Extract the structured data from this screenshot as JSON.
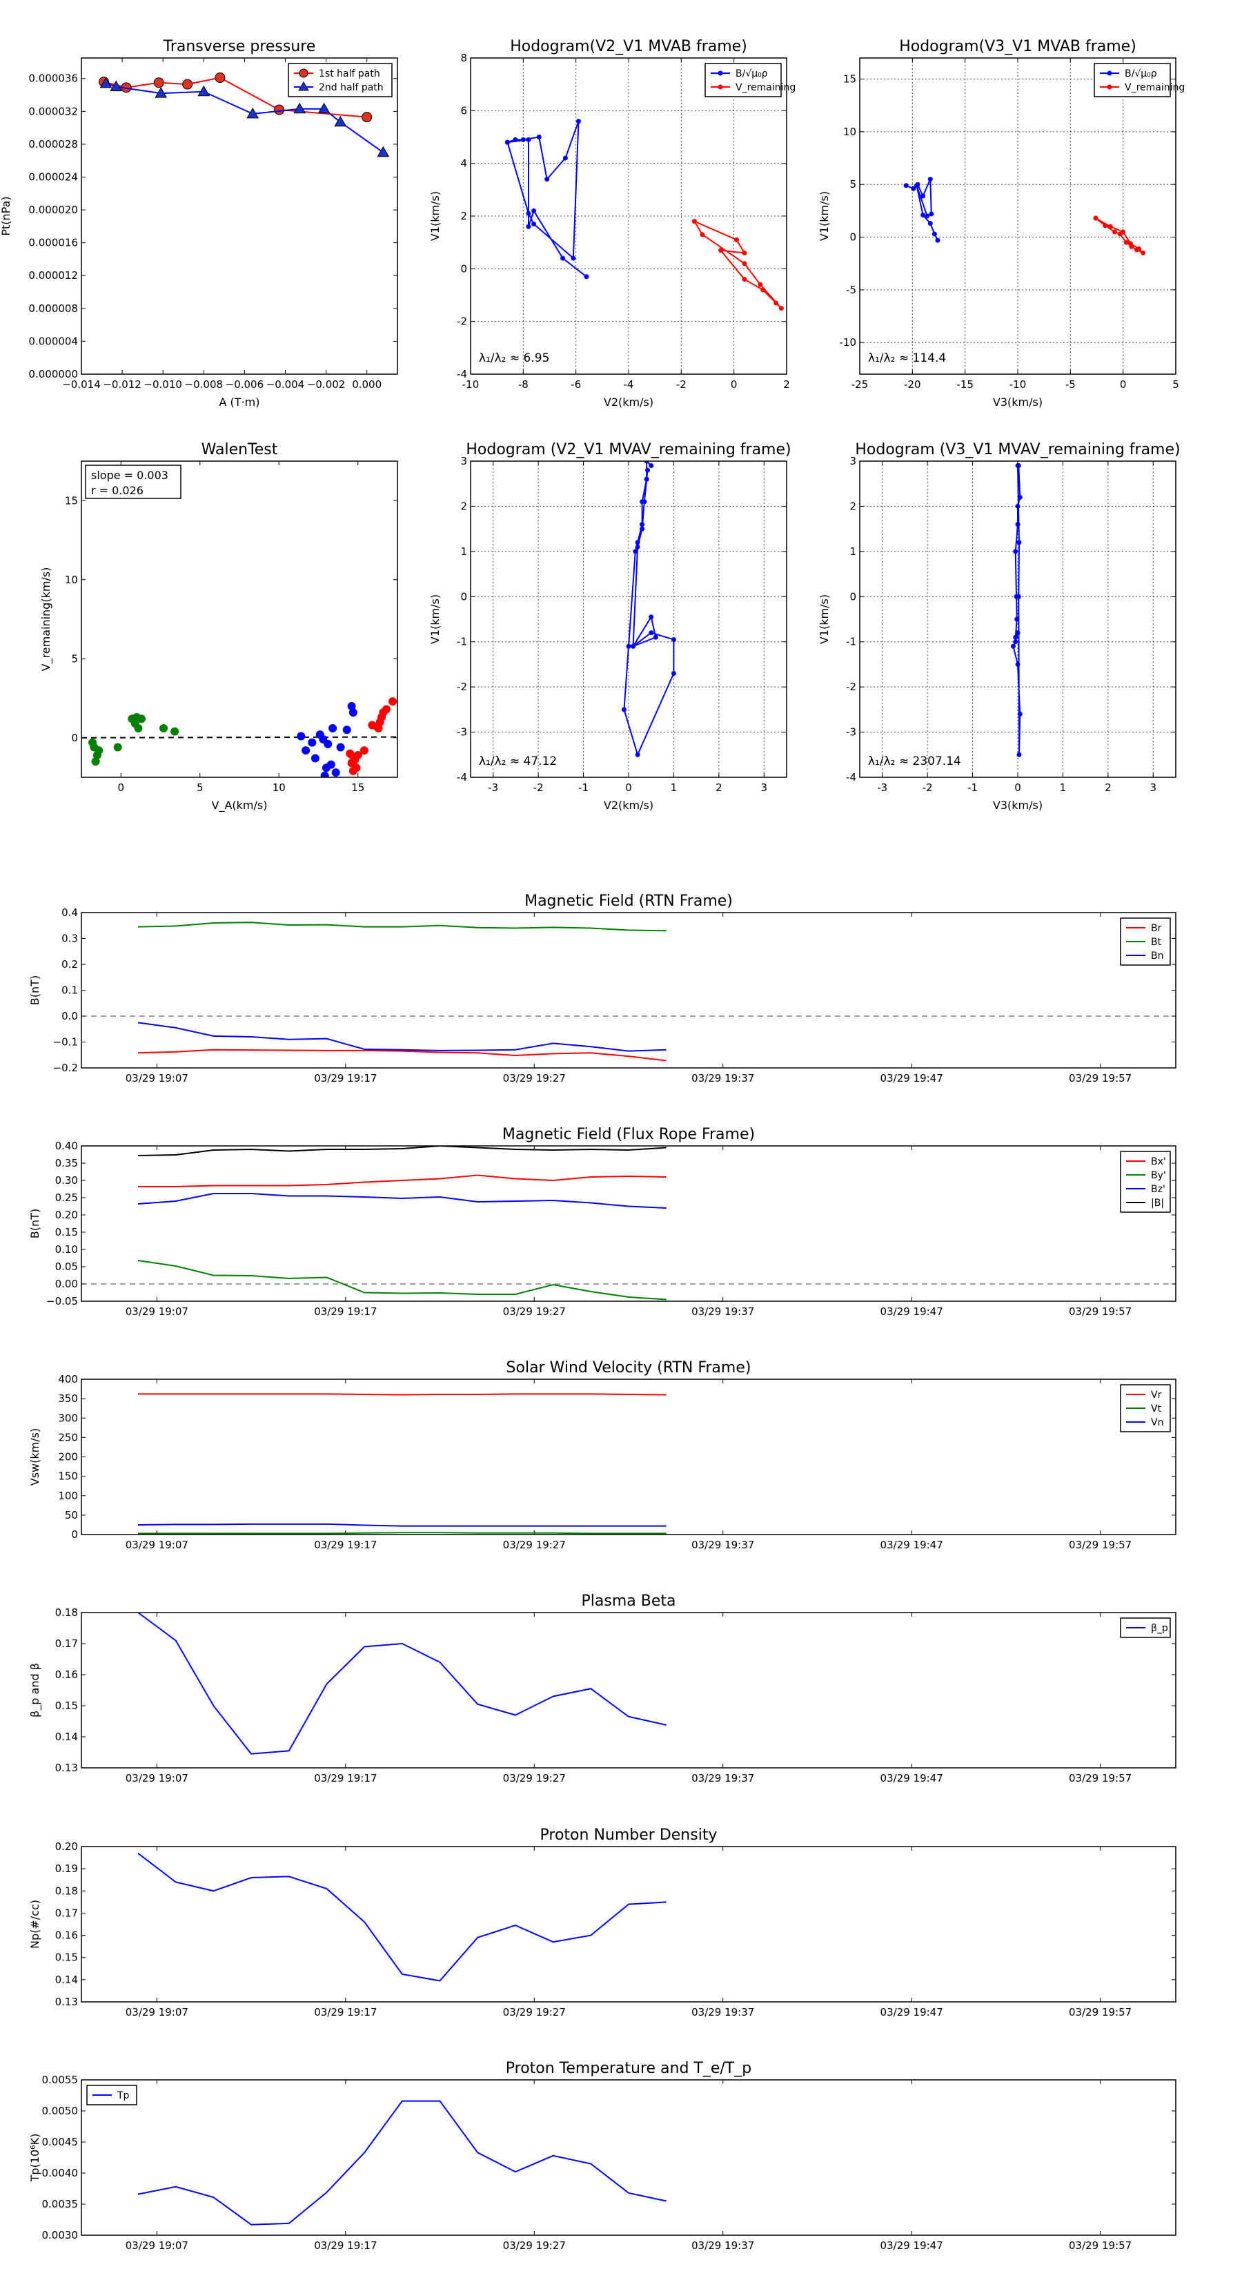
{
  "timeline": {
    "ticks": [
      "03/29 19:07",
      "03/29 19:17",
      "03/29 19:27",
      "03/29 19:37",
      "03/29 19:47",
      "03/29 19:57"
    ],
    "tick_positions": [
      0.5,
      5.5,
      10.5,
      15.5,
      20.5,
      25.5
    ],
    "range": [
      -1.5,
      27.5
    ]
  },
  "chart_data": [
    {
      "id": "transverse-pressure",
      "type": "line",
      "title": "Transverse pressure",
      "xlabel": "A (T·m)",
      "ylabel": "Pt(nPa)",
      "xlim": [
        -0.014,
        0.0015
      ],
      "ylim": [
        0.0,
        3.85e-05
      ],
      "xticks": [
        -0.014,
        -0.012,
        -0.01,
        -0.008,
        -0.006,
        -0.004,
        -0.002,
        0.0
      ],
      "xtick_labels": [
        "−0.014",
        "−0.012",
        "−0.010",
        "−0.008",
        "−0.006",
        "−0.004",
        "−0.002",
        "0.000"
      ],
      "yticks": [
        0,
        4e-06,
        8e-06,
        1.2e-05,
        1.6e-05,
        2e-05,
        2.4e-05,
        2.8e-05,
        3.2e-05,
        3.6e-05
      ],
      "ytick_labels": [
        "0.000000",
        "0.000004",
        "0.000008",
        "0.000012",
        "0.000016",
        "0.000020",
        "0.000024",
        "0.000028",
        "0.000032",
        "0.000036"
      ],
      "legend": "top-right",
      "series": [
        {
          "name": "1st half path",
          "color": "#ff0000",
          "marker": "circle",
          "marker_fill": "#dd3322",
          "x": [
            -0.0129,
            -0.0118,
            -0.0102,
            -0.0088,
            -0.0072,
            -0.0043,
            0.0
          ],
          "y": [
            3.56e-05,
            3.49e-05,
            3.55e-05,
            3.53e-05,
            3.61e-05,
            3.22e-05,
            3.13e-05
          ]
        },
        {
          "name": "2nd half path",
          "color": "#0000ff",
          "marker": "triangle",
          "marker_fill": "#1a33cc",
          "x": [
            0.0008,
            -0.0013,
            -0.0021,
            -0.0033,
            -0.0056,
            -0.008,
            -0.0101,
            -0.0123,
            -0.0128
          ],
          "y": [
            2.7e-05,
            3.07e-05,
            3.23e-05,
            3.23e-05,
            3.17e-05,
            3.44e-05,
            3.42e-05,
            3.5e-05,
            3.54e-05
          ]
        }
      ]
    },
    {
      "id": "hodogram-v2-v1-mvab",
      "type": "scatter",
      "title": "Hodogram(V2_V1 MVAB frame)",
      "xlabel": "V2(km/s)",
      "ylabel": "V1(km/s)",
      "xlim": [
        -10,
        2
      ],
      "ylim": [
        -4,
        8
      ],
      "xticks": [
        -10,
        -8,
        -6,
        -4,
        -2,
        0,
        2
      ],
      "yticks": [
        -4,
        -2,
        0,
        2,
        4,
        6,
        8
      ],
      "grid": true,
      "legend": "top-right",
      "annotation": "λ₁/λ₂ ≈ 6.95",
      "series": [
        {
          "name": "B/√μ₀ρ",
          "color": "#0000ff",
          "x": [
            -8.6,
            -8.3,
            -8.0,
            -7.4,
            -7.1,
            -6.4,
            -5.9,
            -6.1,
            -7.6,
            -7.8,
            -8.6,
            -7.8,
            -7.8,
            -7.6,
            -6.5,
            -5.6
          ],
          "y": [
            4.8,
            4.9,
            4.9,
            5.0,
            3.4,
            4.2,
            5.6,
            0.4,
            1.7,
            2.1,
            4.8,
            4.9,
            1.6,
            2.2,
            0.4,
            -0.3
          ]
        },
        {
          "name": "V_remaining",
          "color": "#ff0000",
          "x": [
            -1.5,
            0.1,
            0.4,
            -0.5,
            0.4,
            1.1,
            1.6,
            1.8,
            1.0,
            0.4,
            -1.2,
            -1.5
          ],
          "y": [
            1.8,
            1.1,
            0.6,
            0.7,
            -0.4,
            -0.8,
            -1.3,
            -1.5,
            -0.6,
            0.2,
            1.3,
            1.8
          ]
        }
      ]
    },
    {
      "id": "hodogram-v3-v1-mvab",
      "type": "scatter",
      "title": "Hodogram(V3_V1 MVAB frame)",
      "xlabel": "V3(km/s)",
      "ylabel": "V1(km/s)",
      "xlim": [
        -25,
        5
      ],
      "ylim": [
        -13,
        17
      ],
      "xticks": [
        -25,
        -20,
        -15,
        -10,
        -5,
        0,
        5
      ],
      "yticks": [
        -10,
        -5,
        0,
        5,
        10,
        15
      ],
      "grid": true,
      "legend": "top-right",
      "annotation": "λ₁/λ₂ ≈ 114.4",
      "series": [
        {
          "name": "B/√μ₀ρ",
          "color": "#0000ff",
          "x": [
            -20.6,
            -19.9,
            -19.5,
            -19.0,
            -18.3,
            -18.2,
            -18.6,
            -19.6,
            -19.0,
            -18.3,
            -17.9,
            -17.6
          ],
          "y": [
            4.9,
            4.6,
            5.0,
            3.9,
            5.5,
            2.2,
            2.0,
            4.9,
            2.1,
            1.3,
            0.3,
            -0.3
          ]
        },
        {
          "name": "V_remaining",
          "color": "#ff0000",
          "x": [
            -2.6,
            -1.7,
            -0.8,
            -0.3,
            0.3,
            0.8,
            1.3,
            1.9,
            1.5,
            0.7,
            0.0,
            -1.2,
            -2.6
          ],
          "y": [
            1.8,
            1.1,
            0.5,
            0.3,
            -0.5,
            -0.9,
            -1.2,
            -1.5,
            -1.1,
            -0.6,
            0.5,
            1.0,
            1.8
          ]
        }
      ]
    },
    {
      "id": "walen-test",
      "type": "scatter",
      "title": "WalenTest",
      "xlabel": "V_A(km/s)",
      "ylabel": "V_remaining(km/s)",
      "xlim": [
        -2.5,
        17.5
      ],
      "ylim": [
        -2.5,
        17.5
      ],
      "xticks": [
        0,
        5,
        10,
        15
      ],
      "yticks": [
        0,
        5,
        10,
        15
      ],
      "annotations": [
        "slope = 0.003",
        "r = 0.026"
      ],
      "groups": [
        {
          "color": "#008000",
          "x": [
            -1.8,
            -1.7,
            -1.5,
            -1.6,
            -1.4,
            0.7,
            0.9,
            1.1,
            1.0,
            1.3,
            2.7,
            3.4,
            -0.2
          ],
          "y": [
            -0.3,
            -0.6,
            -1.1,
            -1.5,
            -0.8,
            1.2,
            0.9,
            0.6,
            1.3,
            1.2,
            0.6,
            0.4,
            -0.6
          ]
        },
        {
          "color": "#0000ff",
          "x": [
            11.4,
            11.7,
            12.1,
            12.3,
            12.6,
            12.8,
            13.1,
            13.3,
            13.4,
            13.6,
            13.9,
            14.3,
            14.6,
            14.7,
            12.9,
            13.0
          ],
          "y": [
            0.1,
            -0.8,
            -0.3,
            -1.3,
            0.2,
            -0.1,
            -0.4,
            -1.7,
            0.6,
            -2.2,
            -0.6,
            0.5,
            2.0,
            1.6,
            -2.4,
            -1.9
          ]
        },
        {
          "color": "#ff0000",
          "x": [
            14.5,
            14.6,
            14.7,
            14.8,
            15.0,
            15.4,
            15.9,
            16.2,
            16.4,
            16.6,
            16.8,
            17.2,
            14.9,
            14.7,
            16.5,
            16.3
          ],
          "y": [
            -1.0,
            -1.6,
            -2.1,
            -1.4,
            -1.1,
            -0.8,
            0.8,
            0.7,
            1.0,
            1.6,
            1.8,
            2.3,
            -1.9,
            -1.2,
            1.3,
            0.6
          ]
        }
      ]
    },
    {
      "id": "hodogram-v2-v1-mvav",
      "type": "line",
      "title": "Hodogram (V2_V1 MVAV_remaining frame)",
      "xlabel": "V2(km/s)",
      "ylabel": "V1(km/s)",
      "xlim": [
        -3.5,
        3.5
      ],
      "ylim": [
        -4,
        3
      ],
      "xticks": [
        -3,
        -2,
        -1,
        0,
        1,
        2,
        3
      ],
      "yticks": [
        -4,
        -3,
        -2,
        -1,
        0,
        1,
        2,
        3
      ],
      "grid": true,
      "annotation": "λ₁/λ₂ ≈ 47.12",
      "color": "#0000ff",
      "x": [
        0.5,
        0.4,
        0.4,
        0.3,
        0.3,
        0.2,
        0.15,
        0.0,
        -0.1,
        0.2,
        1.0,
        1.0,
        0.5,
        0.1,
        0.6,
        0.5,
        0.1,
        0.2,
        0.3,
        0.35,
        0.4,
        0.42
      ],
      "y": [
        2.9,
        3.0,
        2.6,
        2.1,
        1.6,
        1.2,
        1.0,
        -1.1,
        -2.5,
        -3.5,
        -1.7,
        -0.95,
        -0.8,
        -1.1,
        -0.9,
        -0.45,
        -1.1,
        1.1,
        1.5,
        2.1,
        2.6,
        2.8
      ]
    },
    {
      "id": "hodogram-v3-v1-mvav",
      "type": "line",
      "title": "Hodogram (V3_V1 MVAV_remaining frame)",
      "xlabel": "V3(km/s)",
      "ylabel": "V1(km/s)",
      "xlim": [
        -3.5,
        3.5
      ],
      "ylim": [
        -4,
        3
      ],
      "xticks": [
        -3,
        -2,
        -1,
        0,
        1,
        2,
        3
      ],
      "yticks": [
        -4,
        -3,
        -2,
        -1,
        0,
        1,
        2,
        3
      ],
      "grid": true,
      "annotation": "λ₁/λ₂ ≈ 2307.14",
      "color": "#0000ff",
      "x": [
        0.02,
        0.05,
        0.0,
        0.0,
        -0.05,
        -0.03,
        -0.02,
        -0.05,
        0.0,
        -0.05,
        -0.1,
        0.0,
        0.05,
        0.03,
        0.02,
        0.03,
        0.0
      ],
      "y": [
        2.9,
        2.2,
        2.0,
        1.6,
        1.0,
        0.0,
        -0.5,
        -0.9,
        -0.8,
        -1.0,
        -1.1,
        -1.5,
        -2.6,
        -3.5,
        0.0,
        1.2,
        2.9
      ]
    },
    {
      "id": "magnetic-field-rtn",
      "type": "line",
      "title": "Magnetic Field (RTN Frame)",
      "ylabel": "B(nT)",
      "ylim": [
        -0.2,
        0.4
      ],
      "yticks": [
        -0.2,
        -0.1,
        0.0,
        0.1,
        0.2,
        0.3,
        0.4
      ],
      "ytick_labels": [
        "−0.2",
        "−0.1",
        "0.0",
        "0.1",
        "0.2",
        "0.3",
        "0.4"
      ],
      "zero_line": true,
      "legend": "top-right",
      "series": [
        {
          "name": "Br",
          "color": "#ff0000",
          "values": [
            -0.142,
            -0.138,
            -0.13,
            -0.131,
            -0.132,
            -0.133,
            -0.133,
            -0.135,
            -0.14,
            -0.142,
            -0.152,
            -0.145,
            -0.142,
            -0.155,
            -0.172
          ]
        },
        {
          "name": "Bt",
          "color": "#008000",
          "values": [
            0.345,
            0.348,
            0.36,
            0.362,
            0.352,
            0.353,
            0.345,
            0.345,
            0.35,
            0.342,
            0.34,
            0.343,
            0.34,
            0.332,
            0.33
          ]
        },
        {
          "name": "Bn",
          "color": "#0000ff",
          "values": [
            -0.025,
            -0.045,
            -0.077,
            -0.08,
            -0.09,
            -0.087,
            -0.128,
            -0.13,
            -0.133,
            -0.132,
            -0.13,
            -0.105,
            -0.118,
            -0.135,
            -0.13
          ]
        }
      ]
    },
    {
      "id": "magnetic-field-flux-rope",
      "type": "line",
      "title": "Magnetic Field (Flux Rope Frame)",
      "ylabel": "B(nT)",
      "ylim": [
        -0.05,
        0.4
      ],
      "yticks": [
        -0.05,
        0.0,
        0.05,
        0.1,
        0.15,
        0.2,
        0.25,
        0.3,
        0.35,
        0.4
      ],
      "ytick_labels": [
        "−0.05",
        "0.00",
        "0.05",
        "0.10",
        "0.15",
        "0.20",
        "0.25",
        "0.30",
        "0.35",
        "0.40"
      ],
      "zero_line": true,
      "legend": "top-right",
      "series": [
        {
          "name": "Bx'",
          "color": "#ff0000",
          "values": [
            0.282,
            0.282,
            0.285,
            0.285,
            0.285,
            0.288,
            0.295,
            0.3,
            0.305,
            0.315,
            0.305,
            0.3,
            0.31,
            0.312,
            0.31
          ]
        },
        {
          "name": "By'",
          "color": "#008000",
          "values": [
            0.068,
            0.052,
            0.025,
            0.024,
            0.016,
            0.019,
            -0.025,
            -0.027,
            -0.026,
            -0.03,
            -0.03,
            -0.002,
            -0.022,
            -0.038,
            -0.045
          ]
        },
        {
          "name": "Bz'",
          "color": "#0000ff",
          "values": [
            0.232,
            0.24,
            0.262,
            0.262,
            0.255,
            0.255,
            0.252,
            0.248,
            0.252,
            0.238,
            0.24,
            0.242,
            0.235,
            0.225,
            0.22
          ]
        },
        {
          "name": "|B|",
          "color": "#000000",
          "values": [
            0.372,
            0.374,
            0.388,
            0.39,
            0.385,
            0.39,
            0.39,
            0.392,
            0.4,
            0.395,
            0.39,
            0.388,
            0.39,
            0.388,
            0.395
          ]
        }
      ]
    },
    {
      "id": "solar-wind-velocity",
      "type": "line",
      "title": "Solar Wind Velocity (RTN Frame)",
      "ylabel": "Vsw(km/s)",
      "ylim": [
        0,
        400
      ],
      "yticks": [
        0,
        50,
        100,
        150,
        200,
        250,
        300,
        350,
        400
      ],
      "legend": "top-right",
      "series": [
        {
          "name": "Vr",
          "color": "#ff0000",
          "values": [
            362,
            362,
            362,
            362,
            362,
            362,
            361,
            360,
            361,
            361,
            362,
            362,
            362,
            361,
            360
          ]
        },
        {
          "name": "Vt",
          "color": "#008000",
          "values": [
            3,
            3,
            3,
            3,
            3,
            3,
            4,
            5,
            5,
            4,
            4,
            4,
            3,
            3,
            3
          ]
        },
        {
          "name": "Vn",
          "color": "#0000ff",
          "values": [
            25,
            26,
            26,
            27,
            27,
            27,
            24,
            22,
            22,
            22,
            22,
            22,
            22,
            22,
            22
          ]
        }
      ]
    },
    {
      "id": "plasma-beta",
      "type": "line",
      "title": "Plasma Beta",
      "ylabel": "β_p and β",
      "ylim": [
        0.13,
        0.18
      ],
      "yticks": [
        0.13,
        0.14,
        0.15,
        0.16,
        0.17,
        0.18
      ],
      "ytick_labels": [
        "0.13",
        "0.14",
        "0.15",
        "0.16",
        "0.17",
        "0.18"
      ],
      "legend": "top-right",
      "series": [
        {
          "name": "β_p",
          "color": "#0000ff",
          "values": [
            0.18,
            0.171,
            0.15,
            0.1345,
            0.1355,
            0.157,
            0.169,
            0.17,
            0.164,
            0.1505,
            0.147,
            0.153,
            0.1555,
            0.1465,
            0.1438
          ]
        }
      ]
    },
    {
      "id": "proton-number-density",
      "type": "line",
      "title": "Proton Number Density",
      "ylabel": "Np(#/cc)",
      "ylim": [
        0.13,
        0.2
      ],
      "yticks": [
        0.13,
        0.14,
        0.15,
        0.16,
        0.17,
        0.18,
        0.19,
        0.2
      ],
      "ytick_labels": [
        "0.13",
        "0.14",
        "0.15",
        "0.16",
        "0.17",
        "0.18",
        "0.19",
        "0.20"
      ],
      "series": [
        {
          "name": "",
          "color": "#0000ff",
          "values": [
            0.197,
            0.184,
            0.18,
            0.186,
            0.1865,
            0.181,
            0.166,
            0.1425,
            0.1395,
            0.159,
            0.1645,
            0.157,
            0.16,
            0.174,
            0.175
          ]
        }
      ]
    },
    {
      "id": "proton-temperature",
      "type": "line",
      "title": "Proton Temperature and T_e/T_p",
      "ylabel": "Tp(10⁶K)",
      "ylim": [
        0.003,
        0.0055
      ],
      "yticks": [
        0.003,
        0.0035,
        0.004,
        0.0045,
        0.005,
        0.0055
      ],
      "ytick_labels": [
        "0.0030",
        "0.0035",
        "0.0040",
        "0.0045",
        "0.0050",
        "0.0055"
      ],
      "legend": "top-left",
      "series": [
        {
          "name": "Tp",
          "color": "#0000ff",
          "values": [
            0.00366,
            0.00378,
            0.00361,
            0.00317,
            0.00319,
            0.00369,
            0.00433,
            0.00516,
            0.00516,
            0.00433,
            0.00402,
            0.00428,
            0.00415,
            0.00368,
            0.00355
          ]
        }
      ]
    }
  ]
}
